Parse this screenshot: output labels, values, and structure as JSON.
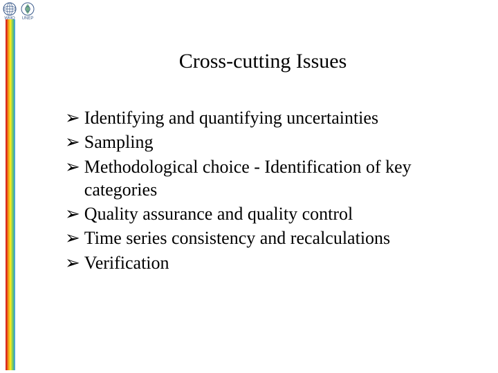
{
  "logos": {
    "wmo_label": "WMO",
    "unep_label": "UNEP",
    "wmo_color": "#3a5a8a",
    "unep_color": "#3a8a5a"
  },
  "rainbow": {
    "bands": [
      "#d9261c",
      "#e86b1a",
      "#f2b41c",
      "#f8e81c",
      "#b8d84a",
      "#5fbf6e",
      "#4aa7d1"
    ]
  },
  "title": "Cross-cutting Issues",
  "bullets": [
    "Identifying and quantifying uncertainties",
    "Sampling",
    "Methodological choice - Identification of key categories",
    "Quality assurance and quality control",
    "Time series consistency and recalculations",
    "Verification"
  ],
  "bullet_marker": "➢",
  "styles": {
    "title_fontsize": 30,
    "body_fontsize": 26,
    "text_color": "#000000",
    "background_color": "#ffffff",
    "font_family": "Times New Roman"
  }
}
